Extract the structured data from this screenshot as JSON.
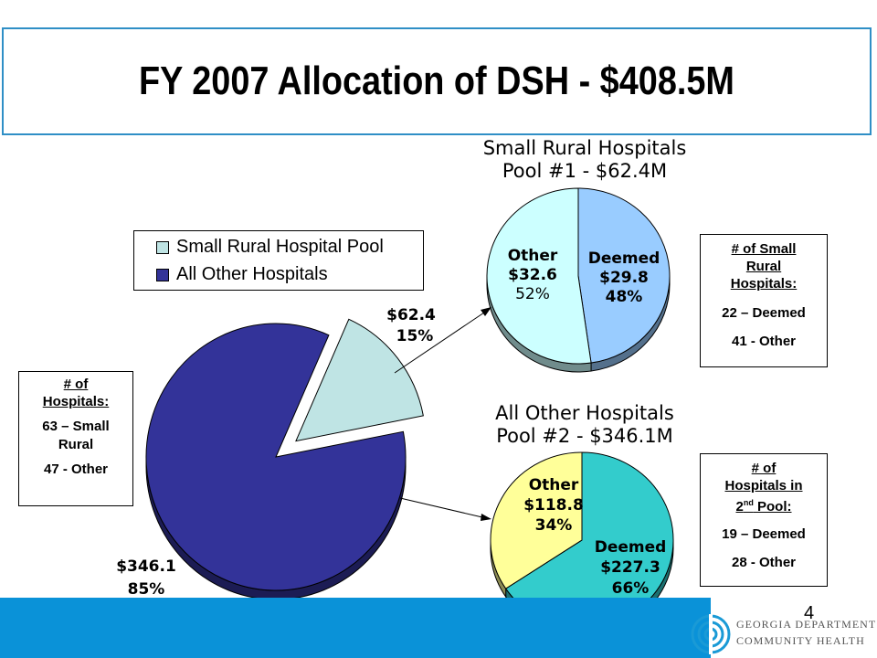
{
  "title": "FY 2007 Allocation of DSH - $408.5M",
  "page_number": "4",
  "logo": {
    "line1": "GEORGIA DEPARTMENT OF",
    "line2": "COMMUNITY HEALTH",
    "icon": "dch-logo-icon"
  },
  "colors": {
    "small_rural": "#bfe4e4",
    "all_other": "#333399",
    "deemed1": "#99ccff",
    "other1": "#ccffff",
    "deemed2": "#33cccc",
    "other2": "#ffff99",
    "bar": "#0a92d8",
    "title_border": "#2f8fc6"
  },
  "legend": {
    "items": [
      "Small Rural Hospital Pool",
      "All Other Hospitals"
    ]
  },
  "left_box": {
    "header": [
      "# of",
      "Hospitals:"
    ],
    "lines": [
      "63 – Small",
      "Rural",
      "47 - Other"
    ]
  },
  "pool1_box": {
    "header": [
      "# of Small",
      "Rural",
      "Hospitals:"
    ],
    "lines": [
      "22 – Deemed",
      "41 - Other"
    ]
  },
  "pool2_box": {
    "header_a": "# of",
    "header_b": "Hospitals in",
    "header_c": "2",
    "header_sup": "nd",
    "header_d": " Pool:",
    "lines": [
      "19 – Deemed",
      "28 - Other"
    ]
  },
  "chart_data": [
    {
      "type": "pie",
      "series": [
        {
          "name": "Small Rural Hospital Pool",
          "value": 62.4,
          "label": "$62.4",
          "percent": "15%"
        },
        {
          "name": "All Other Hospitals",
          "value": 346.1,
          "label": "$346.1",
          "percent": "85%"
        }
      ],
      "legend_placement": "top-left"
    },
    {
      "type": "pie",
      "title": [
        "Small Rural Hospitals",
        "Pool #1 - $62.4M"
      ],
      "series": [
        {
          "name": "Deemed",
          "value": 29.8,
          "label": "$29.8",
          "percent": "48%"
        },
        {
          "name": "Other",
          "value": 32.6,
          "label": "$32.6",
          "percent": "52%"
        }
      ]
    },
    {
      "type": "pie",
      "title": [
        "All Other Hospitals",
        "Pool #2 - $346.1M"
      ],
      "series": [
        {
          "name": "Deemed",
          "value": 227.3,
          "label": "$227.3",
          "percent": "66%"
        },
        {
          "name": "Other",
          "value": 118.8,
          "label": "$118.8",
          "percent": "34%"
        }
      ]
    }
  ]
}
